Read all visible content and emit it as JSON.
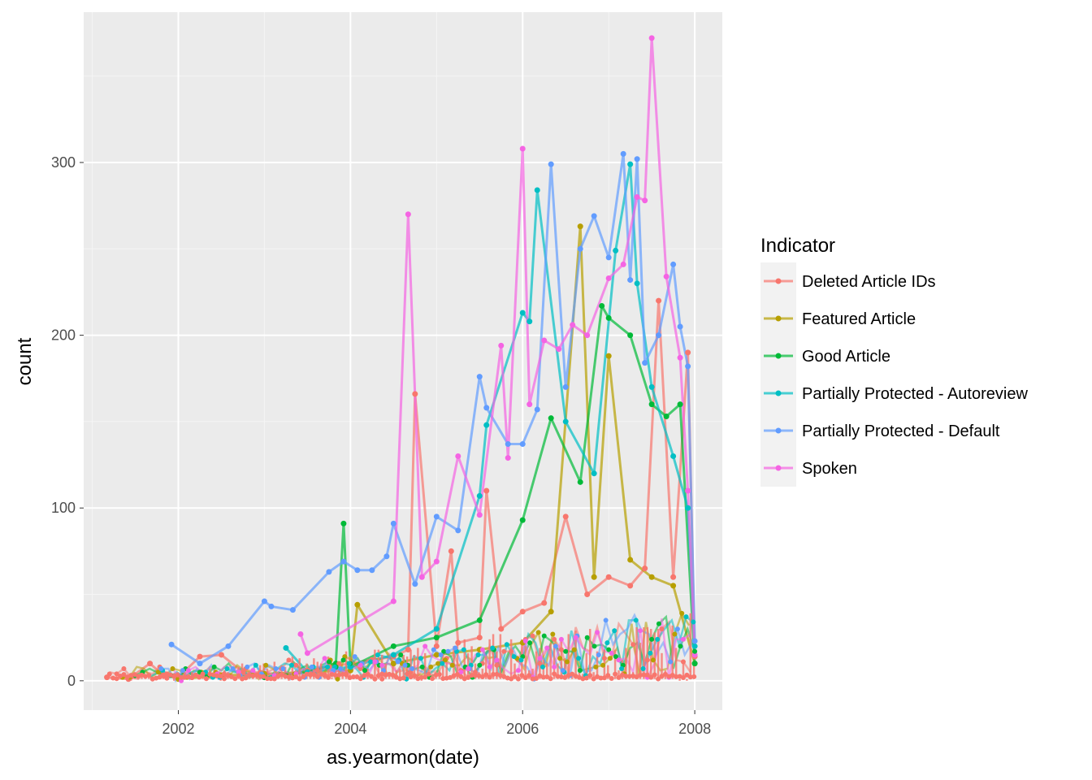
{
  "chart_data": {
    "type": "line",
    "xlabel": "as.yearmon(date)",
    "ylabel": "count",
    "xlim": [
      2000.9,
      2008.32
    ],
    "ylim": [
      -17,
      387
    ],
    "xticks": [
      2002,
      2004,
      2006,
      2008
    ],
    "xtick_labels": [
      "2002",
      "2004",
      "2006",
      "2008"
    ],
    "yticks": [
      0,
      100,
      200,
      300
    ],
    "ytick_labels": [
      "0",
      "100",
      "200",
      "300"
    ],
    "grid": true,
    "legend": {
      "title": "Indicator",
      "position": "right"
    },
    "series": [
      {
        "name": "Deleted Article IDs",
        "color": "#F8766D",
        "x": [
          2001.17,
          2001.42,
          2001.67,
          2001.83,
          2002.0,
          2002.25,
          2002.5,
          2002.75,
          2003.0,
          2003.25,
          2003.5,
          2003.75,
          2004.0,
          2004.25,
          2004.5,
          2004.67,
          2004.75,
          2005.0,
          2005.17,
          2005.25,
          2005.5,
          2005.58,
          2005.75,
          2006.0,
          2006.25,
          2006.5,
          2006.75,
          2007.0,
          2007.25,
          2007.42,
          2007.58,
          2007.75,
          2007.92,
          2008.0
        ],
        "values": [
          2,
          1,
          10,
          3,
          2,
          14,
          15,
          5,
          4,
          3,
          6,
          8,
          10,
          12,
          14,
          18,
          166,
          20,
          75,
          22,
          25,
          110,
          30,
          40,
          45,
          95,
          50,
          60,
          55,
          65,
          220,
          60,
          190,
          14
        ]
      },
      {
        "name": "Featured Article",
        "color": "#B79F00",
        "x": [
          2002.0,
          2002.5,
          2003.0,
          2003.5,
          2004.0,
          2004.08,
          2004.5,
          2005.0,
          2005.5,
          2006.0,
          2006.33,
          2006.67,
          2006.83,
          2007.0,
          2007.25,
          2007.5,
          2007.75,
          2008.0
        ],
        "values": [
          1,
          3,
          4,
          5,
          6,
          44,
          10,
          15,
          18,
          22,
          40,
          263,
          60,
          188,
          70,
          60,
          55,
          10
        ]
      },
      {
        "name": "Good Article",
        "color": "#00BA38",
        "x": [
          2003.0,
          2003.5,
          2003.83,
          2003.92,
          2004.0,
          2004.5,
          2005.0,
          2005.5,
          2006.0,
          2006.33,
          2006.67,
          2006.92,
          2007.0,
          2007.25,
          2007.5,
          2007.67,
          2007.83,
          2008.0
        ],
        "values": [
          2,
          5,
          10,
          91,
          8,
          20,
          25,
          35,
          93,
          152,
          115,
          217,
          210,
          200,
          160,
          153,
          160,
          10
        ]
      },
      {
        "name": "Partially Protected - Autoreview",
        "color": "#00BFC4",
        "x": [
          2003.25,
          2003.5,
          2004.0,
          2004.5,
          2005.0,
          2005.5,
          2005.58,
          2006.0,
          2006.08,
          2006.17,
          2006.5,
          2006.83,
          2007.08,
          2007.25,
          2007.33,
          2007.5,
          2007.75,
          2007.92,
          2008.0
        ],
        "values": [
          19,
          5,
          8,
          15,
          30,
          107,
          148,
          213,
          208,
          284,
          150,
          120,
          249,
          299,
          230,
          170,
          130,
          100,
          20
        ]
      },
      {
        "name": "Partially Protected - Default",
        "color": "#619CFF",
        "x": [
          2001.92,
          2002.25,
          2002.58,
          2003.0,
          2003.08,
          2003.33,
          2003.75,
          2003.92,
          2004.08,
          2004.25,
          2004.42,
          2004.5,
          2004.75,
          2005.0,
          2005.25,
          2005.5,
          2005.58,
          2005.83,
          2006.0,
          2006.17,
          2006.33,
          2006.5,
          2006.67,
          2006.83,
          2007.0,
          2007.17,
          2007.25,
          2007.33,
          2007.42,
          2007.58,
          2007.75,
          2007.83,
          2007.92,
          2008.0
        ],
        "values": [
          21,
          10,
          20,
          46,
          43,
          41,
          63,
          69,
          64,
          64,
          72,
          91,
          56,
          95,
          87,
          176,
          158,
          137,
          137,
          157,
          299,
          170,
          250,
          269,
          245,
          305,
          232,
          302,
          184,
          200,
          241,
          205,
          182,
          23
        ]
      },
      {
        "name": "Spoken",
        "color": "#F564E3",
        "x": [
          2003.42,
          2003.5,
          2004.5,
          2004.67,
          2004.83,
          2005.0,
          2005.25,
          2005.5,
          2005.75,
          2005.83,
          2006.0,
          2006.08,
          2006.25,
          2006.42,
          2006.58,
          2006.75,
          2007.0,
          2007.17,
          2007.33,
          2007.42,
          2007.5,
          2007.67,
          2007.83,
          2007.92,
          2008.0
        ],
        "values": [
          27,
          16,
          46,
          270,
          60,
          69,
          130,
          96,
          194,
          129,
          308,
          160,
          197,
          192,
          206,
          200,
          233,
          241,
          280,
          278,
          372,
          234,
          187,
          110,
          15
        ]
      }
    ]
  }
}
